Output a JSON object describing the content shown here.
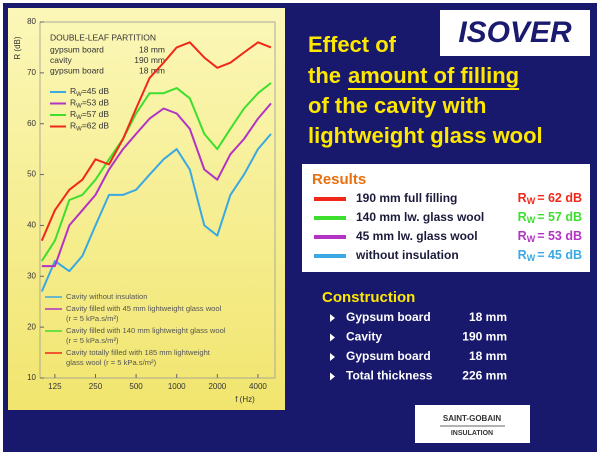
{
  "chart_data": {
    "type": "line",
    "y_label": "R (dB)",
    "x_label": "f (Hz)",
    "log_x": true,
    "grid": false,
    "annotation": {
      "title": "DOUBLE-LEAF PARTITION",
      "rows": [
        [
          "gypsum board",
          "18 mm"
        ],
        [
          "cavity",
          "190 mm"
        ],
        [
          "gypsum board",
          "18 mm"
        ]
      ]
    },
    "rw_symbol": "R",
    "rw_sub": "W",
    "x": [
      100,
      125,
      160,
      200,
      250,
      315,
      400,
      500,
      630,
      800,
      1000,
      1250,
      1600,
      2000,
      2500,
      3150,
      4000,
      5000
    ],
    "xlim": [
      97,
      5350
    ],
    "xticks": [
      125,
      250,
      500,
      1000,
      2000,
      4000
    ],
    "ylim": [
      10,
      80
    ],
    "yticks": [
      10,
      20,
      30,
      40,
      50,
      60,
      70,
      80
    ],
    "series": [
      {
        "name": "Cavity without insulation",
        "rw_label": "=45 dB",
        "color": "#3aa8e2",
        "values": [
          27,
          33,
          31,
          34,
          40,
          46,
          46,
          47,
          50,
          53,
          55,
          51,
          40,
          38,
          46,
          50,
          55,
          58
        ]
      },
      {
        "name": "Cavity filled with 45 mm lightweight glass wool",
        "note": "(r = 5 kPa.s/m²)",
        "rw_label": "=53 dB",
        "color": "#b233c4",
        "values": [
          32,
          32,
          40,
          43,
          46,
          51,
          55,
          58,
          61,
          63,
          62,
          59,
          51,
          49,
          54,
          57,
          61,
          64
        ]
      },
      {
        "name": "Cavity filled with 140 mm lightweight glass wool",
        "note": "(r = 5 kPa.s/m²)",
        "rw_label": "=57 dB",
        "color": "#3ede2e",
        "values": [
          33,
          37,
          45,
          46,
          49,
          53,
          57,
          62,
          66,
          66,
          67,
          65,
          58,
          55,
          59,
          63,
          66,
          68
        ]
      },
      {
        "name": "Cavity totally filled with 185 mm lightweight",
        "note": "glass wool (r = 5 kPa.s/m²)",
        "rw_label": "=62 dB",
        "color": "#f0281a",
        "values": [
          37,
          43,
          47,
          49,
          53,
          52,
          57,
          63,
          69,
          72,
          75,
          76,
          73,
          71,
          72,
          74,
          76,
          75
        ]
      }
    ]
  },
  "logo": "ISOVER",
  "title": {
    "line1": "Effect of",
    "line2_pre": "the",
    "line2_underlined": "amount of filling",
    "line3": "of the cavity with",
    "line4": "lightweight glass wool"
  },
  "results": {
    "heading": "Results",
    "rw_symbol": "R",
    "rw_sub": "W",
    "rows": [
      {
        "label": "190 mm full filling",
        "value": "= 62 dB",
        "color": "#f0281a"
      },
      {
        "label": "140 mm lw. glass wool",
        "value": "= 57 dB",
        "color": "#3ede2e"
      },
      {
        "label": "45 mm lw. glass wool",
        "value": "= 53 dB",
        "color": "#b233c4"
      },
      {
        "label": "without insulation",
        "value": "= 45 dB",
        "color": "#3aa8e2"
      }
    ]
  },
  "construction": {
    "heading": "Construction",
    "rows": [
      [
        "Gypsum board",
        "18 mm"
      ],
      [
        "Cavity",
        "190 mm"
      ],
      [
        "Gypsum board",
        "18 mm"
      ],
      [
        "Total thickness",
        "226 mm"
      ]
    ]
  },
  "footer_logo": {
    "name": "SAINT-GOBAIN",
    "sub": "INSULATION"
  }
}
